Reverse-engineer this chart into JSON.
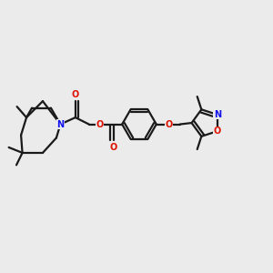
{
  "bg_color": "#ebebeb",
  "bond_color": "#1a1a1a",
  "O_color": "#dd1100",
  "N_color": "#1111ee",
  "line_width": 1.6,
  "figsize": [
    3.0,
    3.0
  ],
  "dpi": 100,
  "xlim": [
    0.0,
    1.0
  ],
  "ylim": [
    0.25,
    0.85
  ]
}
